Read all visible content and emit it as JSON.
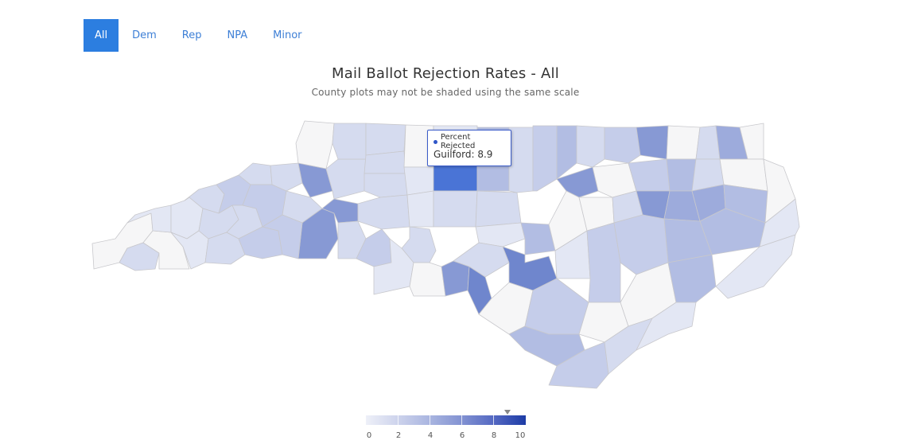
{
  "tabs": [
    {
      "label": "All",
      "active": true
    },
    {
      "label": "Dem",
      "active": false
    },
    {
      "label": "Rep",
      "active": false
    },
    {
      "label": "NPA",
      "active": false
    },
    {
      "label": "Minor",
      "active": false
    }
  ],
  "title": "Mail Ballot Rejection Rates - All",
  "subtitle": "County plots may not be shaded using the same scale",
  "tooltip": {
    "series": "Percent Rejected",
    "text": "Guilford: 8.9",
    "county": "Guilford",
    "value": 8.9
  },
  "legend": {
    "ticks": [
      "0",
      "2",
      "4",
      "6",
      "8",
      "10"
    ],
    "min": 0,
    "max": 10,
    "marker_value": 8.9,
    "color_low": "#eef0f8",
    "color_high": "#1d3ca6"
  },
  "colors": {
    "accent": "#2c7ee0",
    "no_data": "#f7f7f7",
    "highlight": "#4a74d6"
  }
}
